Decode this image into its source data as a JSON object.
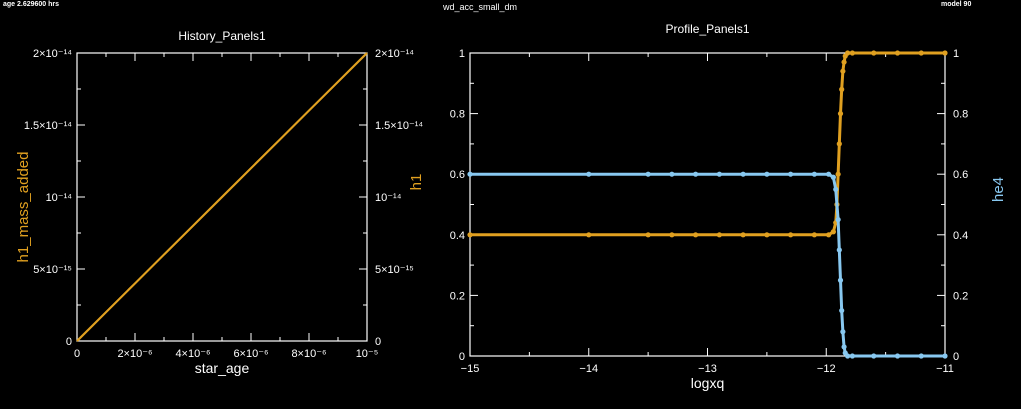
{
  "header": {
    "age_text": "age 2.629600 hrs",
    "run_name": "wd_acc_small_dm",
    "model_text": "model 90"
  },
  "colors": {
    "background": "#000000",
    "axes": "#ffffff",
    "orange": "#e0a020",
    "blue": "#88c8f0"
  },
  "chart_data": [
    {
      "type": "line",
      "title": "History_Panels1",
      "xlabel": "star_age",
      "ylabel_left": "h1_mass_added",
      "ylabel_right": "h1",
      "xlim": [
        0,
        1e-05
      ],
      "ylim": [
        0,
        2e-14
      ],
      "x_ticks": [
        {
          "value": 0,
          "label": "0"
        },
        {
          "value": 2e-06,
          "label": "2×10⁻⁶"
        },
        {
          "value": 4e-06,
          "label": "4×10⁻⁶"
        },
        {
          "value": 6e-06,
          "label": "6×10⁻⁶"
        },
        {
          "value": 8e-06,
          "label": "8×10⁻⁶"
        },
        {
          "value": 1e-05,
          "label": "10⁻⁵"
        }
      ],
      "y_ticks_left": [
        {
          "value": 0,
          "label": "0"
        },
        {
          "value": 5e-15,
          "label": "5×10⁻¹⁵"
        },
        {
          "value": 1e-14,
          "label": "10⁻¹⁴"
        },
        {
          "value": 1.5e-14,
          "label": "1.5×10⁻¹⁴"
        },
        {
          "value": 2e-14,
          "label": "2×10⁻¹⁴"
        }
      ],
      "y_ticks_right": [
        {
          "value": 0,
          "label": "0"
        },
        {
          "value": 5e-15,
          "label": "5×10⁻¹⁵"
        },
        {
          "value": 1e-14,
          "label": "10⁻¹⁴"
        },
        {
          "value": 1.5e-14,
          "label": "1.5×10⁻¹⁴"
        },
        {
          "value": 2e-14,
          "label": "2×10⁻¹⁴"
        }
      ],
      "series": [
        {
          "name": "h1_mass_added",
          "color": "#e0a020",
          "x": [
            0,
            1e-06,
            2e-06,
            3e-06,
            4e-06,
            5e-06,
            6e-06,
            7e-06,
            8e-06,
            9e-06,
            1e-05
          ],
          "y": [
            0,
            2e-15,
            4e-15,
            6e-15,
            8e-15,
            1e-14,
            1.2e-14,
            1.4e-14,
            1.6e-14,
            1.8e-14,
            2e-14
          ]
        },
        {
          "name": "h1",
          "color": "#e0a020",
          "x": [
            0,
            1e-06,
            2e-06,
            3e-06,
            4e-06,
            5e-06,
            6e-06,
            7e-06,
            8e-06,
            9e-06,
            1e-05
          ],
          "y": [
            0,
            2e-15,
            4e-15,
            6e-15,
            8e-15,
            1e-14,
            1.2e-14,
            1.4e-14,
            1.6e-14,
            1.8e-14,
            2e-14
          ]
        }
      ]
    },
    {
      "type": "line",
      "title": "Profile_Panels1",
      "xlabel": "logxq",
      "ylabel_left": "",
      "ylabel_right": "he4",
      "xlim": [
        -15,
        -11
      ],
      "ylim": [
        0,
        1
      ],
      "x_ticks": [
        {
          "value": -15,
          "label": "−15"
        },
        {
          "value": -14,
          "label": "−14"
        },
        {
          "value": -13,
          "label": "−13"
        },
        {
          "value": -12,
          "label": "−12"
        },
        {
          "value": -11,
          "label": "−11"
        }
      ],
      "y_ticks_left": [
        {
          "value": 0,
          "label": "0"
        },
        {
          "value": 0.2,
          "label": "0.2"
        },
        {
          "value": 0.4,
          "label": "0.4"
        },
        {
          "value": 0.6,
          "label": "0.6"
        },
        {
          "value": 0.8,
          "label": "0.8"
        },
        {
          "value": 1,
          "label": "1"
        }
      ],
      "y_ticks_right": [
        {
          "value": 0,
          "label": "0"
        },
        {
          "value": 0.2,
          "label": "0.2"
        },
        {
          "value": 0.4,
          "label": "0.4"
        },
        {
          "value": 0.6,
          "label": "0.6"
        },
        {
          "value": 0.8,
          "label": "0.8"
        },
        {
          "value": 1,
          "label": "1"
        }
      ],
      "series": [
        {
          "name": "h1",
          "color": "#e0a020",
          "x": [
            -15,
            -14,
            -13.5,
            -13.3,
            -13.1,
            -12.9,
            -12.7,
            -12.5,
            -12.3,
            -12.1,
            -11.98,
            -11.94,
            -11.92,
            -11.91,
            -11.9,
            -11.89,
            -11.88,
            -11.87,
            -11.86,
            -11.85,
            -11.84,
            -11.82,
            -11.78,
            -11.6,
            -11.4,
            -11.2,
            -11
          ],
          "y": [
            0.4,
            0.4,
            0.4,
            0.4,
            0.4,
            0.4,
            0.4,
            0.4,
            0.4,
            0.4,
            0.4,
            0.41,
            0.44,
            0.5,
            0.6,
            0.7,
            0.8,
            0.88,
            0.94,
            0.97,
            0.99,
            1,
            1,
            1,
            1,
            1,
            1
          ]
        },
        {
          "name": "he4",
          "color": "#88c8f0",
          "x": [
            -15,
            -14,
            -13.5,
            -13.3,
            -13.1,
            -12.9,
            -12.7,
            -12.5,
            -12.3,
            -12.1,
            -11.98,
            -11.94,
            -11.92,
            -11.9,
            -11.89,
            -11.88,
            -11.87,
            -11.86,
            -11.85,
            -11.84,
            -11.82,
            -11.78,
            -11.6,
            -11.4,
            -11.2,
            -11
          ],
          "y": [
            0.6,
            0.6,
            0.6,
            0.6,
            0.6,
            0.6,
            0.6,
            0.6,
            0.6,
            0.6,
            0.6,
            0.59,
            0.55,
            0.45,
            0.35,
            0.25,
            0.15,
            0.08,
            0.03,
            0.01,
            0,
            0,
            0,
            0,
            0,
            0
          ]
        }
      ]
    }
  ]
}
